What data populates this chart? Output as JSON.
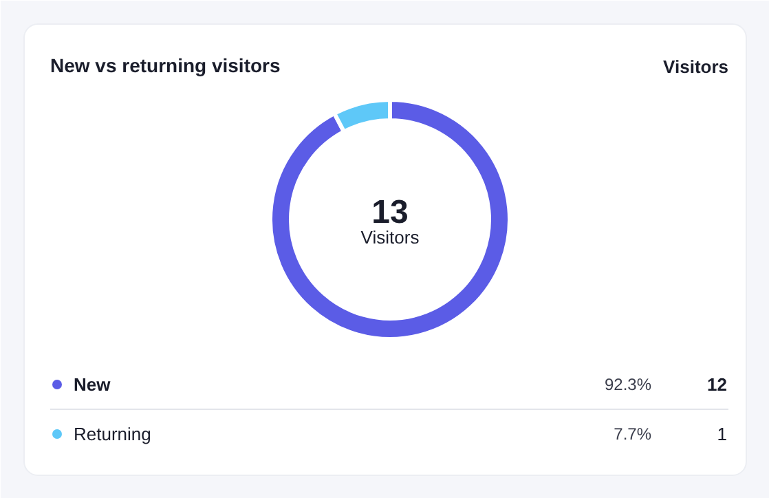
{
  "chart_data": {
    "type": "donut",
    "title": "New vs returning visitors",
    "subtitle": "Visitors",
    "categories": [
      "New",
      "Returning"
    ],
    "values": [
      12,
      1
    ],
    "colors": [
      "#5b5ce6",
      "#5ec8f8"
    ],
    "value_labels": [
      "12",
      "1"
    ],
    "annotations": [
      "13",
      "Visitors",
      "92.3%",
      "7.7%"
    ],
    "legend": "bottom"
  }
}
